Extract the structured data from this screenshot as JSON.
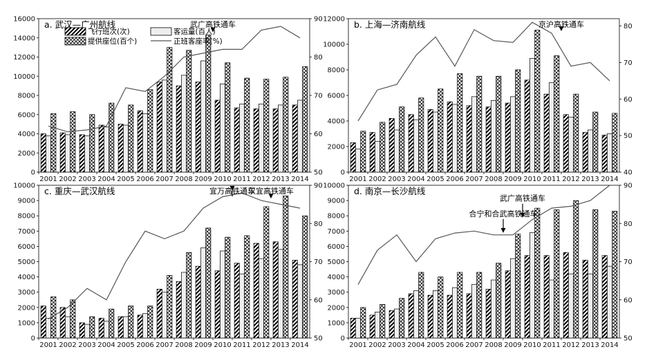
{
  "legend": {
    "flights": "飞行班次(次)",
    "passengers": "客运量(百人)",
    "seats": "提供座位(百个)",
    "load_factor": "正班客座率(%)"
  },
  "colors": {
    "ink": "#000000",
    "passenger_fill": "#eeeeee",
    "line": "#555555"
  },
  "chart_data": [
    {
      "id": "a",
      "type": "bar",
      "title": "a. 武汉—广州航线",
      "categories": [
        "2001",
        "2002",
        "2003",
        "2004",
        "2005",
        "2006",
        "2007",
        "2008",
        "2009",
        "2010",
        "2011",
        "2012",
        "2013",
        "2014"
      ],
      "series": [
        {
          "name": "飞行班次(次)",
          "values": [
            4000,
            4100,
            3900,
            4900,
            5000,
            6400,
            9400,
            9000,
            9400,
            7500,
            6700,
            6600,
            6600,
            7000
          ]
        },
        {
          "name": "客运量(百人)",
          "values": [
            3800,
            3900,
            3800,
            4700,
            4900,
            6100,
            9600,
            10100,
            11600,
            9200,
            7100,
            7100,
            7000,
            7500
          ]
        },
        {
          "name": "提供座位(百个)",
          "values": [
            6100,
            6300,
            6000,
            7200,
            7000,
            8600,
            13000,
            12700,
            14300,
            11400,
            9800,
            9700,
            9900,
            11000
          ]
        },
        {
          "name": "正班客座率(%)",
          "axis": "right",
          "values": [
            62,
            60.5,
            61,
            62,
            72,
            71,
            75,
            80,
            81,
            82,
            82,
            87,
            88,
            85
          ]
        }
      ],
      "ylim": [
        0,
        16000
      ],
      "yticks": [
        0,
        2000,
        4000,
        6000,
        8000,
        10000,
        12000,
        14000,
        16000
      ],
      "y2lim": [
        50,
        90
      ],
      "y2ticks": [
        50,
        60,
        70,
        80,
        90
      ],
      "annotations": [
        {
          "text": "武广高铁通车",
          "year": "2009"
        }
      ]
    },
    {
      "id": "b",
      "type": "bar",
      "title": "b. 上海—济南航线",
      "categories": [
        "2001",
        "2002",
        "2003",
        "2004",
        "2005",
        "2006",
        "2007",
        "2008",
        "2009",
        "2010",
        "2011",
        "2012",
        "2013",
        "2014"
      ],
      "series": [
        {
          "name": "飞行班次(次)",
          "values": [
            2300,
            3100,
            4200,
            4500,
            4900,
            5500,
            5200,
            5100,
            5400,
            7200,
            6100,
            4500,
            3100,
            2900
          ]
        },
        {
          "name": "客运量(百人)",
          "values": [
            1800,
            2400,
            3300,
            4100,
            4700,
            5300,
            5900,
            5600,
            5900,
            8900,
            7000,
            4300,
            3300,
            3000
          ]
        },
        {
          "name": "提供座位(百个)",
          "values": [
            3200,
            3900,
            5100,
            5800,
            6500,
            7700,
            7500,
            7500,
            8000,
            11100,
            9100,
            6100,
            4700,
            4600
          ]
        },
        {
          "name": "正班客座率(%)",
          "axis": "right",
          "values": [
            54,
            62.5,
            64,
            72,
            77,
            69,
            79,
            76,
            75.5,
            81,
            78,
            69,
            70,
            65
          ]
        }
      ],
      "ylim": [
        0,
        12000
      ],
      "yticks": [
        0,
        2000,
        4000,
        6000,
        8000,
        10000,
        12000
      ],
      "y2lim": [
        40,
        82
      ],
      "y2ticks": [
        40,
        50,
        60,
        70,
        80
      ],
      "annotations": [
        {
          "text": "京沪高铁通车",
          "year": "2011"
        }
      ]
    },
    {
      "id": "c",
      "type": "bar",
      "title": "c. 重庆—武汉航线",
      "categories": [
        "2001",
        "2002",
        "2003",
        "2004",
        "2005",
        "2006",
        "2007",
        "2008",
        "2009",
        "2010",
        "2011",
        "2012",
        "2013",
        "2014"
      ],
      "series": [
        {
          "name": "飞行班次(次)",
          "values": [
            2100,
            2000,
            1000,
            1300,
            1400,
            1500,
            3200,
            3700,
            4700,
            4400,
            4900,
            6200,
            6300,
            5100
          ]
        },
        {
          "name": "客运量(百人)",
          "values": [
            1300,
            1400,
            900,
            1100,
            1400,
            1600,
            3000,
            4300,
            5900,
            5700,
            4200,
            5200,
            5800,
            4800
          ]
        },
        {
          "name": "提供座位(百个)",
          "values": [
            2700,
            2500,
            1400,
            1900,
            2100,
            2100,
            4100,
            5600,
            7200,
            6600,
            6700,
            8600,
            9300,
            8000
          ]
        },
        {
          "name": "正班客座率(%)",
          "axis": "right",
          "values": [
            55,
            58,
            63,
            60,
            70,
            78,
            76,
            78,
            84,
            87,
            88,
            86,
            85,
            84
          ]
        }
      ],
      "ylim": [
        0,
        10000
      ],
      "yticks": [
        0,
        1000,
        2000,
        3000,
        4000,
        5000,
        6000,
        7000,
        8000,
        9000,
        10000
      ],
      "y2lim": [
        50,
        90
      ],
      "y2ticks": [
        50,
        60,
        70,
        80,
        90
      ],
      "annotations": [
        {
          "text": "宜万高铁通车",
          "year": "2010"
        },
        {
          "text": "汉宜高铁通车",
          "year": "2012"
        }
      ]
    },
    {
      "id": "d",
      "type": "bar",
      "title": "d. 南京—长沙航线",
      "categories": [
        "2001",
        "2002",
        "2003",
        "2004",
        "2005",
        "2006",
        "2007",
        "2008",
        "2009",
        "2010",
        "2011",
        "2012",
        "2013",
        "2014"
      ],
      "series": [
        {
          "name": "飞行班次(次)",
          "values": [
            1300,
            1500,
            1800,
            2900,
            2800,
            2800,
            2900,
            3200,
            4400,
            5400,
            5400,
            5600,
            5100,
            5400
          ]
        },
        {
          "name": "客运量(百人)",
          "values": [
            1300,
            1700,
            1900,
            3100,
            3100,
            3300,
            3500,
            3800,
            5200,
            6900,
            3800,
            4200,
            4200,
            4700
          ]
        },
        {
          "name": "提供座位(百个)",
          "values": [
            2000,
            2200,
            2600,
            4300,
            4000,
            4300,
            4300,
            4900,
            6800,
            8500,
            8400,
            9000,
            8400,
            8300
          ]
        },
        {
          "name": "正班客座率(%)",
          "axis": "right",
          "values": [
            64,
            73,
            77,
            70,
            76,
            77.5,
            78,
            77,
            77,
            81,
            84,
            84.5,
            86,
            90
          ]
        }
      ],
      "ylim": [
        0,
        10000
      ],
      "yticks": [
        0,
        1000,
        2000,
        3000,
        4000,
        5000,
        6000,
        7000,
        8000,
        9000,
        10000
      ],
      "y2lim": [
        50,
        90
      ],
      "y2ticks": [
        50,
        60,
        70,
        80,
        90
      ],
      "annotations": [
        {
          "text": "合宁和合武高铁通车",
          "year": "2008"
        },
        {
          "text": "武广高铁通车",
          "year": "2009"
        }
      ]
    }
  ]
}
